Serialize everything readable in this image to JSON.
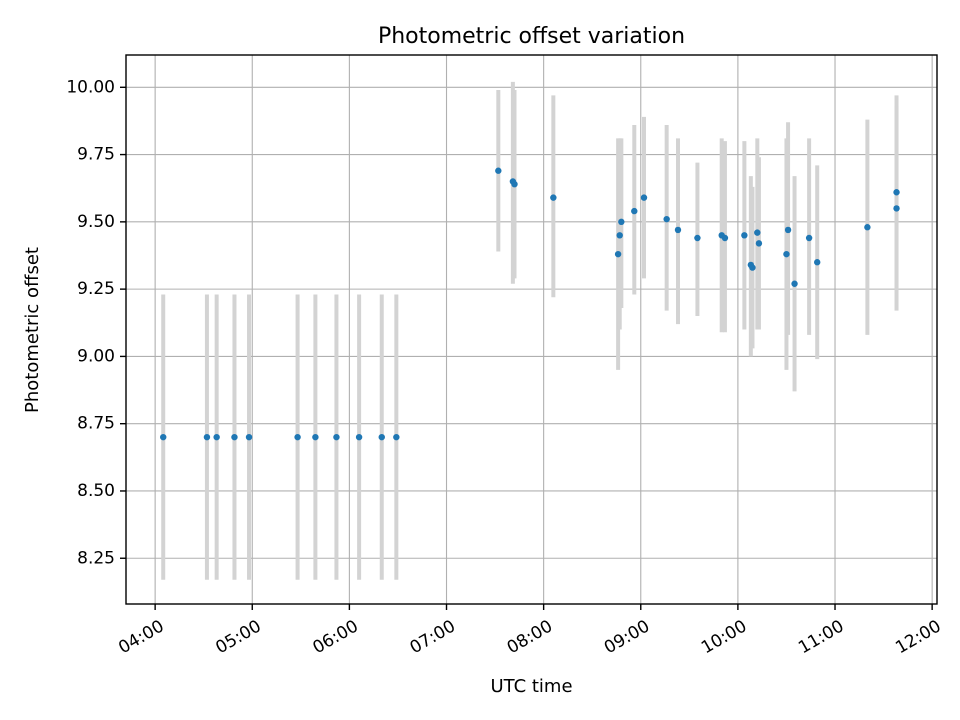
{
  "chart_data": {
    "type": "scatter",
    "title": "Photometric offset variation",
    "xlabel": "UTC time",
    "ylabel": "Photometric offset",
    "grid": true,
    "x_axis_kind": "time",
    "xlim": [
      "03:42",
      "12:03"
    ],
    "ylim": [
      8.08,
      10.12
    ],
    "xticks": [
      "04:00",
      "05:00",
      "06:00",
      "07:00",
      "08:00",
      "09:00",
      "10:00",
      "11:00",
      "12:00"
    ],
    "yticks": [
      8.25,
      8.5,
      8.75,
      9.0,
      9.25,
      9.5,
      9.75,
      10.0
    ],
    "ytick_labels": [
      "8.25",
      "8.50",
      "8.75",
      "9.00",
      "9.25",
      "9.50",
      "9.75",
      "10.00"
    ],
    "colors": {
      "points": "#1f77b4",
      "error_bars": "#d3d3d3"
    },
    "points": [
      {
        "time": "04:05",
        "y": 8.7,
        "lo": 8.17,
        "hi": 9.23
      },
      {
        "time": "04:32",
        "y": 8.7,
        "lo": 8.17,
        "hi": 9.23
      },
      {
        "time": "04:38",
        "y": 8.7,
        "lo": 8.17,
        "hi": 9.23
      },
      {
        "time": "04:49",
        "y": 8.7,
        "lo": 8.17,
        "hi": 9.23
      },
      {
        "time": "04:58",
        "y": 8.7,
        "lo": 8.17,
        "hi": 9.23
      },
      {
        "time": "05:28",
        "y": 8.7,
        "lo": 8.17,
        "hi": 9.23
      },
      {
        "time": "05:39",
        "y": 8.7,
        "lo": 8.17,
        "hi": 9.23
      },
      {
        "time": "05:52",
        "y": 8.7,
        "lo": 8.17,
        "hi": 9.23
      },
      {
        "time": "06:06",
        "y": 8.7,
        "lo": 8.17,
        "hi": 9.23
      },
      {
        "time": "06:20",
        "y": 8.7,
        "lo": 8.17,
        "hi": 9.23
      },
      {
        "time": "06:29",
        "y": 8.7,
        "lo": 8.17,
        "hi": 9.23
      },
      {
        "time": "07:32",
        "y": 9.69,
        "lo": 9.39,
        "hi": 9.99
      },
      {
        "time": "07:41",
        "y": 9.65,
        "lo": 9.27,
        "hi": 10.02
      },
      {
        "time": "07:42",
        "y": 9.64,
        "lo": 9.29,
        "hi": 9.99
      },
      {
        "time": "08:06",
        "y": 9.59,
        "lo": 9.22,
        "hi": 9.97
      },
      {
        "time": "08:46",
        "y": 9.38,
        "lo": 8.95,
        "hi": 9.81
      },
      {
        "time": "08:47",
        "y": 9.45,
        "lo": 9.1,
        "hi": 9.81
      },
      {
        "time": "08:48",
        "y": 9.5,
        "lo": 9.18,
        "hi": 9.81
      },
      {
        "time": "08:56",
        "y": 9.54,
        "lo": 9.23,
        "hi": 9.86
      },
      {
        "time": "09:02",
        "y": 9.59,
        "lo": 9.29,
        "hi": 9.89
      },
      {
        "time": "09:16",
        "y": 9.51,
        "lo": 9.17,
        "hi": 9.86
      },
      {
        "time": "09:23",
        "y": 9.47,
        "lo": 9.12,
        "hi": 9.81
      },
      {
        "time": "09:35",
        "y": 9.44,
        "lo": 9.15,
        "hi": 9.72
      },
      {
        "time": "09:50",
        "y": 9.45,
        "lo": 9.09,
        "hi": 9.81
      },
      {
        "time": "09:52",
        "y": 9.44,
        "lo": 9.09,
        "hi": 9.8
      },
      {
        "time": "10:04",
        "y": 9.45,
        "lo": 9.1,
        "hi": 9.8
      },
      {
        "time": "10:08",
        "y": 9.34,
        "lo": 9.0,
        "hi": 9.67
      },
      {
        "time": "10:09",
        "y": 9.33,
        "lo": 9.03,
        "hi": 9.63
      },
      {
        "time": "10:12",
        "y": 9.46,
        "lo": 9.1,
        "hi": 9.81
      },
      {
        "time": "10:13",
        "y": 9.42,
        "lo": 9.1,
        "hi": 9.74
      },
      {
        "time": "10:30",
        "y": 9.38,
        "lo": 8.95,
        "hi": 9.81
      },
      {
        "time": "10:31",
        "y": 9.47,
        "lo": 9.08,
        "hi": 9.87
      },
      {
        "time": "10:35",
        "y": 9.27,
        "lo": 8.87,
        "hi": 9.67
      },
      {
        "time": "10:44",
        "y": 9.44,
        "lo": 9.08,
        "hi": 9.81
      },
      {
        "time": "10:49",
        "y": 9.35,
        "lo": 8.99,
        "hi": 9.71
      },
      {
        "time": "11:20",
        "y": 9.48,
        "lo": 9.08,
        "hi": 9.88
      },
      {
        "time": "11:38",
        "y": 9.55,
        "lo": 9.17,
        "hi": 9.93
      },
      {
        "time": "11:38",
        "y": 9.61,
        "lo": 9.25,
        "hi": 9.97
      }
    ]
  }
}
